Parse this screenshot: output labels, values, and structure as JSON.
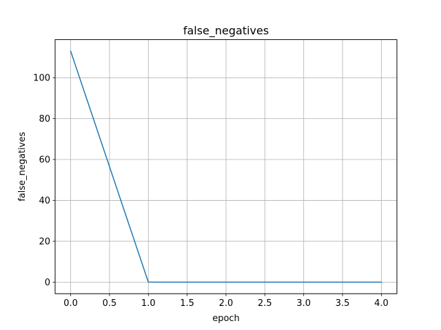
{
  "chart_data": {
    "type": "line",
    "title": "false_negatives",
    "xlabel": "epoch",
    "ylabel": "false_negatives",
    "xlim": [
      -0.2,
      4.2
    ],
    "ylim": [
      -5.65,
      118.65
    ],
    "xticks": [
      0.0,
      0.5,
      1.0,
      1.5,
      2.0,
      2.5,
      3.0,
      3.5,
      4.0
    ],
    "xtick_labels": [
      "0.0",
      "0.5",
      "1.0",
      "1.5",
      "2.0",
      "2.5",
      "3.0",
      "3.5",
      "4.0"
    ],
    "yticks": [
      0,
      20,
      40,
      60,
      80,
      100
    ],
    "ytick_labels": [
      "0",
      "20",
      "40",
      "60",
      "80",
      "100"
    ],
    "grid": true,
    "series": [
      {
        "x": [
          0,
          1,
          2,
          3,
          4
        ],
        "values": [
          113,
          0,
          0,
          0,
          0
        ],
        "color": "#1f77b4"
      }
    ]
  }
}
